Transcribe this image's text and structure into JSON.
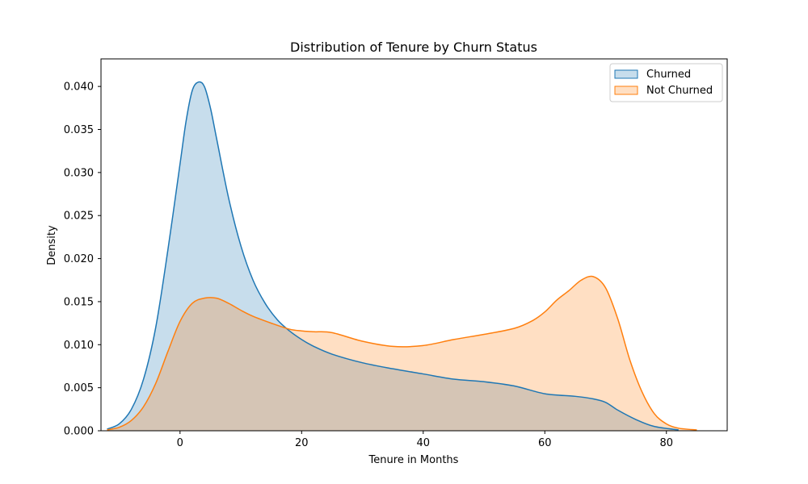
{
  "chart_data": {
    "type": "area",
    "title": "Distribution of Tenure by Churn Status",
    "xlabel": "Tenure in Months",
    "ylabel": "Density",
    "xlim": [
      -13,
      90
    ],
    "ylim": [
      0,
      0.0432
    ],
    "x_ticks": [
      0,
      20,
      40,
      60,
      80
    ],
    "y_ticks": [
      0.0,
      0.005,
      0.01,
      0.015,
      0.02,
      0.025,
      0.03,
      0.035,
      0.04
    ],
    "x_tick_labels": [
      "0",
      "20",
      "40",
      "60",
      "80"
    ],
    "y_tick_labels": [
      "0.000",
      "0.005",
      "0.010",
      "0.015",
      "0.020",
      "0.025",
      "0.030",
      "0.035",
      "0.040"
    ],
    "grid": false,
    "legend_position": "top-right",
    "series": [
      {
        "name": "Churned",
        "color": "#1f77b4",
        "x": [
          -12,
          -10,
          -8,
          -6,
          -4,
          -2,
          0,
          1,
          2,
          3,
          4,
          5,
          6,
          8,
          10,
          12,
          14,
          16,
          18,
          20,
          22,
          25,
          30,
          35,
          40,
          45,
          50,
          55,
          60,
          65,
          68,
          70,
          72,
          75,
          78,
          82
        ],
        "y": [
          0.0002,
          0.0008,
          0.0025,
          0.006,
          0.012,
          0.021,
          0.031,
          0.036,
          0.0395,
          0.0405,
          0.04,
          0.0375,
          0.034,
          0.027,
          0.0215,
          0.0175,
          0.0148,
          0.0129,
          0.0116,
          0.0106,
          0.0098,
          0.0089,
          0.0079,
          0.0072,
          0.0066,
          0.006,
          0.0057,
          0.0052,
          0.0043,
          0.004,
          0.0037,
          0.0033,
          0.0024,
          0.0013,
          0.0005,
          0.0001
        ]
      },
      {
        "name": "Not Churned",
        "color": "#ff7f0e",
        "x": [
          -12,
          -10,
          -8,
          -6,
          -4,
          -2,
          0,
          2,
          4,
          6,
          8,
          10,
          12,
          15,
          18,
          20,
          22,
          25,
          30,
          35,
          40,
          45,
          50,
          55,
          58,
          60,
          62,
          64,
          66,
          68,
          70,
          72,
          74,
          76,
          78,
          80,
          82,
          85
        ],
        "y": [
          0.0001,
          0.0004,
          0.0012,
          0.0028,
          0.0055,
          0.0092,
          0.0127,
          0.0148,
          0.0154,
          0.0154,
          0.0148,
          0.014,
          0.0133,
          0.0125,
          0.0118,
          0.0116,
          0.0115,
          0.0114,
          0.0104,
          0.0098,
          0.0099,
          0.0106,
          0.0112,
          0.0119,
          0.0128,
          0.0138,
          0.0152,
          0.0163,
          0.0175,
          0.0179,
          0.0166,
          0.013,
          0.0082,
          0.0045,
          0.002,
          0.0008,
          0.0003,
          0.0001
        ]
      }
    ]
  }
}
